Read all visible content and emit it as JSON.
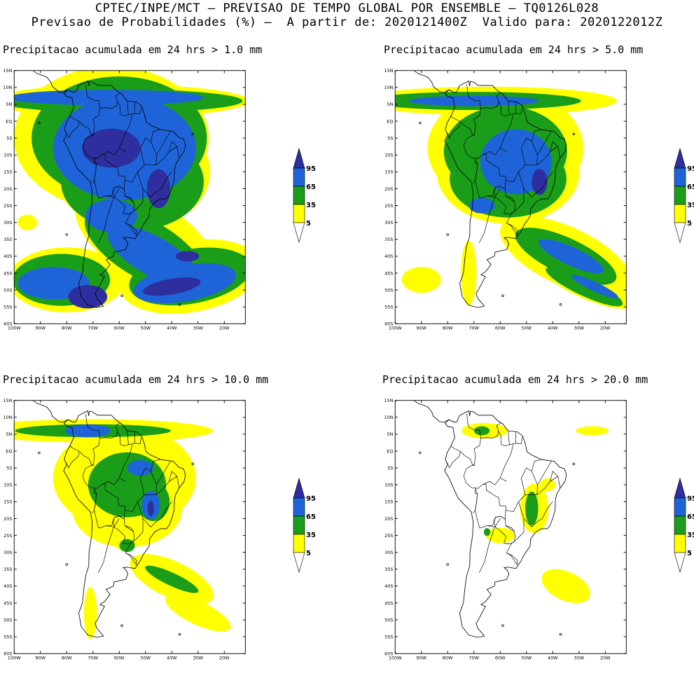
{
  "header": {
    "line1": "CPTEC/INPE/MCT – PREVISAO DE TEMPO GLOBAL POR ENSEMBLE – TQ0126L028",
    "line2": "Previsao de Probabilidades (%) –  A partir de: 2020121400Z  Valido para: 2020122012Z"
  },
  "colors": {
    "c5": "#ffff00",
    "c35": "#1a9e1a",
    "c65": "#1e64d8",
    "c95": "#2e2e9e",
    "coast": "#000000"
  },
  "axes": {
    "lat_labels": [
      "15N",
      "10N",
      "5N",
      "EQ",
      "5S",
      "10S",
      "15S",
      "20S",
      "25S",
      "30S",
      "35S",
      "40S",
      "45S",
      "50S",
      "55S",
      "60S"
    ],
    "lon_labels": [
      "100W",
      "90W",
      "80W",
      "70W",
      "60W",
      "50W",
      "40W",
      "30W",
      "20W"
    ]
  },
  "colorbar": {
    "labels": [
      "95",
      "65",
      "35",
      "5"
    ]
  },
  "panels": [
    {
      "id": "p1",
      "title": "Precipitacao acumulada em 24 hrs > 1.0 mm",
      "level": 4
    },
    {
      "id": "p2",
      "title": "Precipitacao acumulada em 24 hrs > 5.0 mm",
      "level": 3
    },
    {
      "id": "p3",
      "title": "Precipitacao acumulada em 24 hrs > 10.0 mm",
      "level": 2
    },
    {
      "id": "p4",
      "title": "Precipitacao acumulada em 24 hrs > 20.0 mm",
      "level": 1
    }
  ]
}
